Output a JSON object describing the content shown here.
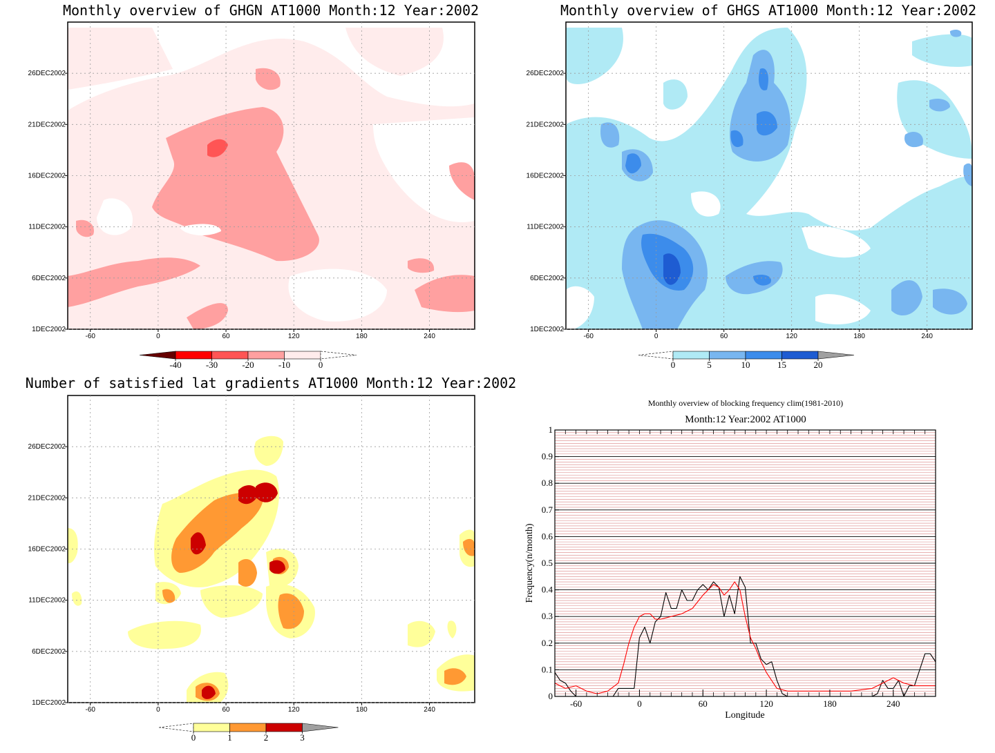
{
  "chart_data": [
    {
      "type": "heatmap",
      "title": "Monthly overview of GHGN AT1000 Month:12 Year:2002",
      "x_ticks": [
        "-60",
        "0",
        "60",
        "120",
        "180",
        "240"
      ],
      "y_ticks": [
        "1DEC2002",
        "6DEC2002",
        "11DEC2002",
        "16DEC2002",
        "21DEC2002",
        "26DEC2002"
      ],
      "xlim": [
        -80,
        280
      ],
      "ylim": [
        1,
        31
      ],
      "colorbar": {
        "labels": [
          "-40",
          "-30",
          "-20",
          "-10",
          "0"
        ],
        "colors": [
          "#660000",
          "#ff0000",
          "#ff5555",
          "#ffa0a0",
          "#ffecec"
        ]
      }
    },
    {
      "type": "heatmap",
      "title": "Monthly overview of GHGS AT1000 Month:12 Year:2002",
      "x_ticks": [
        "-60",
        "0",
        "60",
        "120",
        "180",
        "240"
      ],
      "y_ticks": [
        "1DEC2002",
        "6DEC2002",
        "11DEC2002",
        "16DEC2002",
        "21DEC2002",
        "26DEC2002"
      ],
      "xlim": [
        -80,
        280
      ],
      "ylim": [
        1,
        31
      ],
      "colorbar": {
        "labels": [
          "0",
          "5",
          "10",
          "15",
          "20"
        ],
        "colors": [
          "#b0eaf5",
          "#78b6f0",
          "#3c8ceb",
          "#1e5cd2",
          "#a0a0a0"
        ]
      }
    },
    {
      "type": "heatmap",
      "title": "Number of satisfied lat gradients AT1000 Month:12 Year:2002",
      "x_ticks": [
        "-60",
        "0",
        "60",
        "120",
        "180",
        "240"
      ],
      "y_ticks": [
        "1DEC2002",
        "6DEC2002",
        "11DEC2002",
        "16DEC2002",
        "21DEC2002",
        "26DEC2002"
      ],
      "xlim": [
        -80,
        280
      ],
      "ylim": [
        1,
        31
      ],
      "colorbar": {
        "labels": [
          "0",
          "1",
          "2",
          "3"
        ],
        "colors": [
          "#ffff9a",
          "#ff9933",
          "#cc0000",
          "#a0a0a0"
        ]
      }
    },
    {
      "type": "line",
      "title": "Monthly overview of blocking frequency clim(1981-2010)",
      "subtitle": "Month:12 Year:2002  AT1000",
      "xlabel": "Longitude",
      "ylabel": "Frequency(n/month)",
      "xlim": [
        -80,
        280
      ],
      "ylim": [
        0,
        1
      ],
      "x_ticks": [
        "-60",
        "0",
        "60",
        "120",
        "180",
        "240"
      ],
      "y_ticks": [
        "0",
        "0.1",
        "0.2",
        "0.3",
        "0.4",
        "0.5",
        "0.6",
        "0.7",
        "0.8",
        "0.9",
        "1"
      ],
      "grid": true,
      "series": [
        {
          "color": "#000000",
          "x": [
            -80,
            -75,
            -70,
            -65,
            -60,
            -55,
            -50,
            -40,
            -30,
            -25,
            -20,
            -15,
            -10,
            -5,
            0,
            5,
            10,
            15,
            20,
            25,
            30,
            35,
            40,
            45,
            50,
            55,
            60,
            65,
            70,
            75,
            80,
            85,
            90,
            95,
            100,
            105,
            110,
            115,
            120,
            125,
            130,
            135,
            140,
            150,
            160,
            180,
            200,
            220,
            225,
            230,
            235,
            240,
            245,
            250,
            255,
            260,
            265,
            270,
            275,
            280
          ],
          "y": [
            0.09,
            0.06,
            0.05,
            0.02,
            0.0,
            0.0,
            0.0,
            0.0,
            0.0,
            0.0,
            0.03,
            0.03,
            0.03,
            0.03,
            0.22,
            0.26,
            0.2,
            0.28,
            0.3,
            0.39,
            0.33,
            0.33,
            0.4,
            0.36,
            0.36,
            0.4,
            0.42,
            0.4,
            0.43,
            0.41,
            0.3,
            0.38,
            0.31,
            0.45,
            0.41,
            0.2,
            0.2,
            0.14,
            0.12,
            0.13,
            0.06,
            0.01,
            0.0,
            0.0,
            0.0,
            0.0,
            0.0,
            0.0,
            0.01,
            0.06,
            0.03,
            0.03,
            0.06,
            0.0,
            0.04,
            0.04,
            0.1,
            0.16,
            0.16,
            0.13
          ]
        },
        {
          "color": "#ff0000",
          "x": [
            -80,
            -70,
            -60,
            -50,
            -40,
            -30,
            -20,
            -15,
            -10,
            -5,
            0,
            5,
            10,
            15,
            20,
            30,
            40,
            50,
            60,
            70,
            75,
            80,
            85,
            90,
            95,
            100,
            105,
            110,
            115,
            120,
            130,
            140,
            160,
            180,
            200,
            220,
            230,
            240,
            250,
            260,
            270,
            280
          ],
          "y": [
            0.05,
            0.03,
            0.04,
            0.02,
            0.01,
            0.02,
            0.05,
            0.12,
            0.2,
            0.26,
            0.3,
            0.31,
            0.31,
            0.29,
            0.29,
            0.3,
            0.31,
            0.33,
            0.38,
            0.42,
            0.41,
            0.38,
            0.4,
            0.43,
            0.4,
            0.3,
            0.22,
            0.18,
            0.13,
            0.09,
            0.03,
            0.02,
            0.02,
            0.02,
            0.02,
            0.03,
            0.05,
            0.07,
            0.05,
            0.04,
            0.04,
            0.04
          ]
        }
      ]
    }
  ]
}
